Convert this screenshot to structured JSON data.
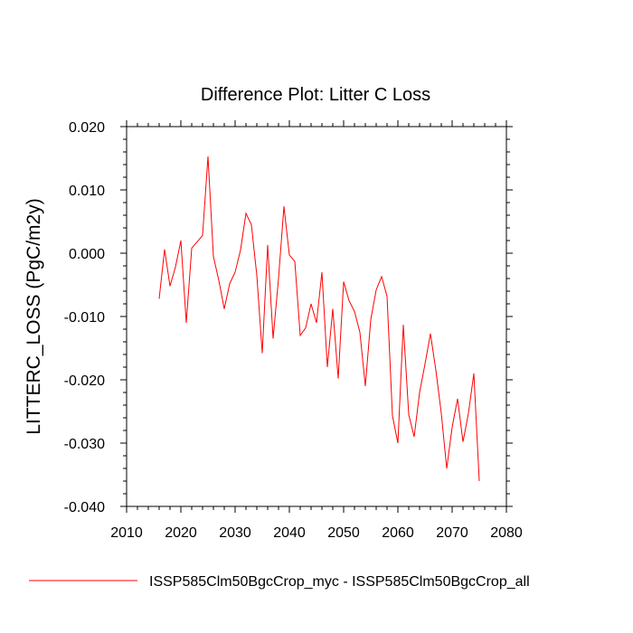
{
  "chart_data": {
    "type": "line",
    "title": "Difference Plot: Litter C Loss",
    "xlabel": "",
    "ylabel": "LITTERC_LOSS  (PgC/m2y)",
    "xlim": [
      2010,
      2080
    ],
    "ylim": [
      -0.04,
      0.02
    ],
    "x_ticks": [
      2010,
      2020,
      2030,
      2040,
      2050,
      2060,
      2070,
      2080
    ],
    "x_tick_labels": [
      "2010",
      "2020",
      "2030",
      "2040",
      "2050",
      "2060",
      "2070",
      "2080"
    ],
    "y_ticks": [
      -0.04,
      -0.03,
      -0.02,
      -0.01,
      0.0,
      0.01,
      0.02
    ],
    "y_tick_labels": [
      "-0.040",
      "-0.030",
      "-0.020",
      "-0.010",
      "0.000",
      "0.010",
      "0.020"
    ],
    "grid": false,
    "legend_position": "bottom",
    "series": [
      {
        "name": "ISSP585Clm50BgcCrop_myc - ISSP585Clm50BgcCrop_all",
        "color": "#ff0000",
        "x": [
          2016,
          2017,
          2018,
          2019,
          2020,
          2021,
          2022,
          2023,
          2024,
          2025,
          2026,
          2027,
          2028,
          2029,
          2030,
          2031,
          2032,
          2033,
          2034,
          2035,
          2036,
          2037,
          2038,
          2039,
          2040,
          2041,
          2042,
          2043,
          2044,
          2045,
          2046,
          2047,
          2048,
          2049,
          2050,
          2051,
          2052,
          2053,
          2054,
          2055,
          2056,
          2057,
          2058,
          2059,
          2060,
          2061,
          2062,
          2063,
          2064,
          2065,
          2066,
          2067,
          2068,
          2069,
          2070,
          2071,
          2072,
          2073,
          2074,
          2075
        ],
        "y": [
          -0.0072,
          0.0006,
          -0.0052,
          -0.0022,
          0.002,
          -0.011,
          0.0008,
          0.0018,
          0.0028,
          0.0153,
          -0.0005,
          -0.0043,
          -0.0088,
          -0.0048,
          -0.003,
          0.0005,
          0.0063,
          0.0045,
          -0.0035,
          -0.0158,
          0.0013,
          -0.0135,
          -0.004,
          0.0074,
          -0.0003,
          -0.0013,
          -0.013,
          -0.0118,
          -0.008,
          -0.011,
          -0.003,
          -0.018,
          -0.0088,
          -0.0198,
          -0.0045,
          -0.0075,
          -0.0092,
          -0.0125,
          -0.021,
          -0.0105,
          -0.0058,
          -0.0037,
          -0.0068,
          -0.0257,
          -0.03,
          -0.0113,
          -0.0255,
          -0.029,
          -0.022,
          -0.0175,
          -0.0127,
          -0.0185,
          -0.0253,
          -0.034,
          -0.0275,
          -0.023,
          -0.0298,
          -0.0253,
          -0.019,
          -0.036
        ]
      }
    ]
  }
}
